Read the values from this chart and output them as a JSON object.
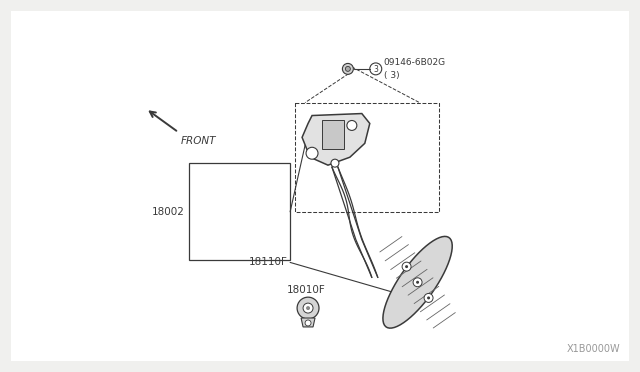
{
  "bg_color": "#f0f0ee",
  "line_color": "#3a3a3a",
  "watermark": "X1B0000W",
  "part_label_2": "18002",
  "part_label_3": "18110F",
  "part_label_4": "18010F",
  "front_label": "FRONT",
  "bolt_label_line1": "09146-6B02G",
  "bolt_label_line2": "( 3)",
  "figsize": [
    6.4,
    3.72
  ],
  "dpi": 100
}
